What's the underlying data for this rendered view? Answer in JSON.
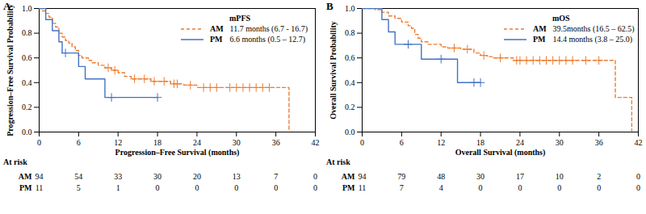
{
  "chart_data": [
    {
      "type": "line",
      "panel": "A",
      "x_label": "Progression–Free Survival (months)",
      "y_label": "Progression–Free Survival Probability",
      "xlim": [
        0,
        42
      ],
      "xticks": [
        0,
        6,
        12,
        18,
        24,
        30,
        36,
        42
      ],
      "ylim": [
        0,
        1
      ],
      "yticks": [
        {
          "value": 0,
          "label": "0.0"
        },
        {
          "value": 0.2,
          "label": "0.2"
        },
        {
          "value": 0.4,
          "label": "0.4"
        },
        {
          "value": 0.6,
          "label": "0.6"
        },
        {
          "value": 0.8,
          "label": "0.8"
        },
        {
          "value": 1,
          "label": "1.0"
        }
      ],
      "legend": "upper right",
      "legend_title": "mPFS",
      "series": [
        {
          "name": "AM",
          "median_label": "11.7 months (6.7 - 16.7)",
          "color": "#ED7D31",
          "line_style": "dashed",
          "marker": "plus",
          "x": [
            0,
            0.5,
            1,
            1.5,
            2,
            2.5,
            3,
            3.5,
            4,
            4.5,
            5,
            5.5,
            6,
            6.5,
            7.5,
            8,
            9,
            10,
            11,
            12,
            13,
            14,
            17,
            20,
            22,
            24,
            38
          ],
          "values": [
            1,
            0.98,
            0.96,
            0.93,
            0.88,
            0.85,
            0.8,
            0.77,
            0.74,
            0.72,
            0.69,
            0.66,
            0.62,
            0.6,
            0.58,
            0.56,
            0.54,
            0.52,
            0.5,
            0.48,
            0.45,
            0.43,
            0.41,
            0.39,
            0.38,
            0.36,
            0.02
          ],
          "censored": [
            10.5,
            11.5,
            14.5,
            16,
            17.5,
            19,
            20.5,
            21,
            23,
            25,
            26,
            27,
            29,
            30,
            31,
            32,
            33,
            34,
            35
          ]
        },
        {
          "name": "PM",
          "median_label": "6.6 months (0.5 – 12.7)",
          "color": "#4472C4",
          "line_style": "solid",
          "marker": "plus",
          "x": [
            0,
            1,
            2,
            3,
            3.5,
            6,
            7,
            10,
            18
          ],
          "values": [
            1,
            0.91,
            0.82,
            0.73,
            0.64,
            0.53,
            0.43,
            0.28,
            0.28
          ],
          "censored": [
            4,
            11,
            18
          ]
        }
      ],
      "at_risk": {
        "title": "At risk",
        "x": [
          0,
          6,
          12,
          18,
          24,
          30,
          36,
          42
        ],
        "rows": [
          {
            "name": "AM",
            "values": [
              94,
              54,
              33,
              30,
              20,
              13,
              7,
              0
            ]
          },
          {
            "name": "PM",
            "values": [
              11,
              5,
              1,
              0,
              0,
              0,
              0,
              0
            ]
          }
        ]
      }
    },
    {
      "type": "line",
      "panel": "B",
      "x_label": "Overall Survival (months)",
      "y_label": "Overall Survival Probability",
      "xlim": [
        0,
        42
      ],
      "xticks": [
        0,
        6,
        12,
        18,
        24,
        30,
        36,
        42
      ],
      "ylim": [
        0,
        1
      ],
      "yticks": [
        {
          "value": 0,
          "label": "0.0"
        },
        {
          "value": 0.2,
          "label": "0.2"
        },
        {
          "value": 0.4,
          "label": "0.4"
        },
        {
          "value": 0.6,
          "label": "0.6"
        },
        {
          "value": 0.8,
          "label": "0.8"
        },
        {
          "value": 1,
          "label": "1.0"
        }
      ],
      "legend": "upper right",
      "legend_title": "mOS",
      "series": [
        {
          "name": "AM",
          "median_label": "39.5months (16.5 – 62.5)",
          "color": "#ED7D31",
          "line_style": "dashed",
          "marker": "plus",
          "x": [
            0,
            2,
            3,
            4,
            5,
            6,
            7,
            7.5,
            8,
            8.5,
            9,
            10,
            12,
            13,
            15,
            17,
            18,
            19,
            20,
            23,
            38.5,
            41
          ],
          "values": [
            1,
            0.99,
            0.97,
            0.94,
            0.92,
            0.89,
            0.86,
            0.84,
            0.79,
            0.76,
            0.73,
            0.71,
            0.69,
            0.68,
            0.67,
            0.64,
            0.62,
            0.61,
            0.6,
            0.58,
            0.28,
            0.01
          ],
          "censored": [
            14,
            16,
            18.5,
            21,
            23.5,
            24,
            25,
            26,
            27,
            28,
            29,
            30,
            31,
            32,
            34,
            36
          ]
        },
        {
          "name": "PM",
          "median_label": "14.4 months (3.8 – 25.0)",
          "color": "#4472C4",
          "line_style": "solid",
          "marker": "plus",
          "x": [
            0,
            3,
            4,
            5,
            9,
            14.5,
            18
          ],
          "values": [
            1,
            0.91,
            0.81,
            0.71,
            0.59,
            0.4,
            0.4
          ],
          "censored": [
            7,
            12,
            17,
            18
          ]
        }
      ],
      "at_risk": {
        "title": "At risk",
        "x": [
          0,
          6,
          12,
          18,
          24,
          30,
          36,
          42
        ],
        "rows": [
          {
            "name": "AM",
            "values": [
              94,
              79,
              48,
              30,
              17,
              10,
              2,
              0
            ]
          },
          {
            "name": "PM",
            "values": [
              11,
              7,
              4,
              0,
              0,
              0,
              0,
              0
            ]
          }
        ]
      }
    }
  ]
}
